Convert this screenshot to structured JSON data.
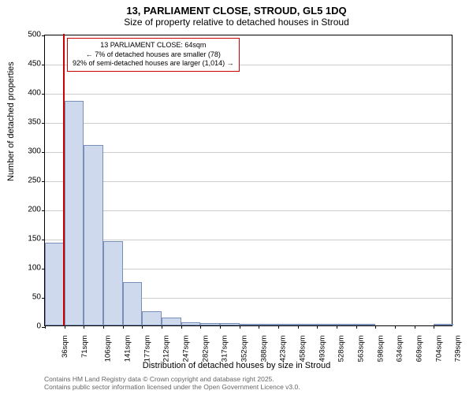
{
  "title": {
    "line1": "13, PARLIAMENT CLOSE, STROUD, GL5 1DQ",
    "line2": "Size of property relative to detached houses in Stroud"
  },
  "chart": {
    "type": "histogram",
    "ylabel": "Number of detached properties",
    "xlabel": "Distribution of detached houses by size in Stroud",
    "ylim": [
      0,
      500
    ],
    "ytick_step": 50,
    "yticks": [
      0,
      50,
      100,
      150,
      200,
      250,
      300,
      350,
      400,
      450,
      500
    ],
    "xticks": [
      "36sqm",
      "71sqm",
      "106sqm",
      "141sqm",
      "177sqm",
      "212sqm",
      "247sqm",
      "282sqm",
      "317sqm",
      "352sqm",
      "388sqm",
      "423sqm",
      "458sqm",
      "493sqm",
      "528sqm",
      "563sqm",
      "598sqm",
      "634sqm",
      "669sqm",
      "704sqm",
      "739sqm"
    ],
    "bars": [
      142,
      385,
      310,
      145,
      75,
      25,
      14,
      6,
      4,
      4,
      3,
      2,
      1,
      1,
      1,
      1,
      1,
      0,
      0,
      0,
      2
    ],
    "bar_fill": "#cfd9ed",
    "bar_stroke": "#7a8fb8",
    "grid_color": "#cccccc",
    "background_color": "#ffffff",
    "marker_color": "#cc0000",
    "marker_position_pct": 4.5,
    "callout": {
      "line1": "13 PARLIAMENT CLOSE: 64sqm",
      "line2": "← 7% of detached houses are smaller (78)",
      "line3": "92% of semi-detached houses are larger (1,014) →"
    }
  },
  "footer": {
    "line1": "Contains HM Land Registry data © Crown copyright and database right 2025.",
    "line2": "Contains public sector information licensed under the Open Government Licence v3.0."
  }
}
